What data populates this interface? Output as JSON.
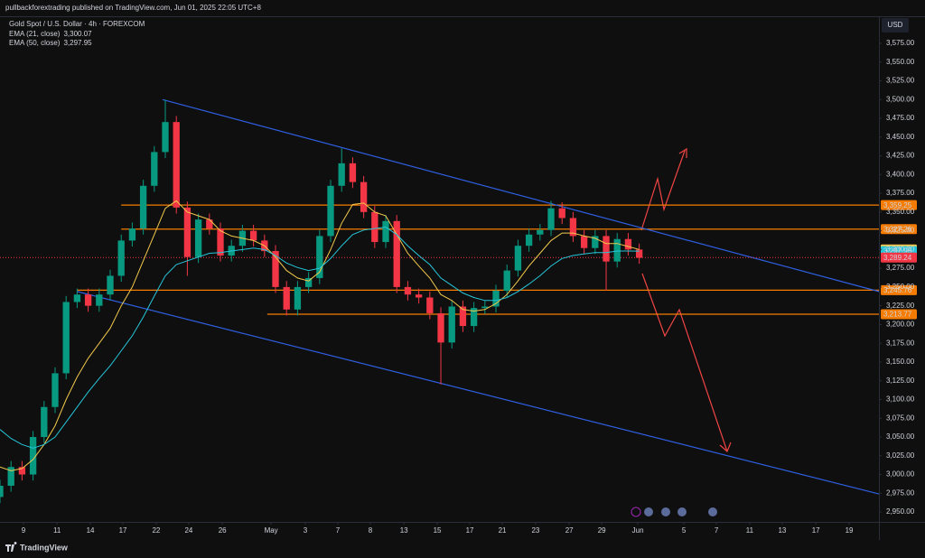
{
  "header": {
    "publisher": "pullbackforextrading published on TradingView.com, Jun 01, 2025 22:05 UTC+8",
    "currency": "USD",
    "brand": "TradingView"
  },
  "chart_data": {
    "type": "candlestick",
    "title": "Gold Spot / U.S. Dollar · 4h · FOREXCOM",
    "up_color": "#089981",
    "down_color": "#f23645",
    "grid": false,
    "x": [
      0,
      4,
      8,
      12,
      16,
      20,
      24,
      28,
      32,
      36,
      40,
      44,
      48,
      52,
      56,
      60,
      64,
      68,
      72,
      76,
      80,
      84,
      88,
      92,
      96,
      100,
      104,
      108,
      112,
      116,
      120,
      124,
      128,
      132,
      136,
      140,
      144,
      148,
      152,
      156,
      160,
      164,
      168,
      172,
      176,
      180,
      184,
      188,
      192,
      196,
      200,
      204,
      208,
      212,
      216,
      220,
      224,
      228,
      232
    ],
    "open": [
      2970,
      2985,
      3010,
      3000,
      3050,
      3090,
      3135,
      3230,
      3240,
      3225,
      3240,
      3265,
      3312,
      3328,
      3385,
      3430,
      3470,
      3356,
      3290,
      3340,
      3328,
      3292,
      3305,
      3325,
      3312,
      3298,
      3250,
      3220,
      3250,
      3262,
      3318,
      3385,
      3415,
      3390,
      3350,
      3310,
      3338,
      3250,
      3240,
      3236,
      3215,
      3176,
      3224,
      3198,
      3222,
      3224,
      3245,
      3272,
      3305,
      3320,
      3326,
      3355,
      3342,
      3318,
      3302,
      3318,
      3284,
      3314,
      3300
    ],
    "high": [
      2993,
      3018,
      3018,
      3058,
      3098,
      3143,
      3238,
      3248,
      3248,
      3248,
      3273,
      3320,
      3336,
      3393,
      3438,
      3500,
      3478,
      3364,
      3348,
      3348,
      3336,
      3313,
      3333,
      3333,
      3320,
      3306,
      3258,
      3258,
      3270,
      3326,
      3393,
      3435,
      3423,
      3398,
      3358,
      3346,
      3346,
      3258,
      3248,
      3244,
      3223,
      3232,
      3232,
      3230,
      3232,
      3253,
      3280,
      3313,
      3328,
      3334,
      3365,
      3363,
      3350,
      3326,
      3326,
      3326,
      3322,
      3322,
      3308
    ],
    "low": [
      2962,
      2977,
      2992,
      2992,
      3042,
      3082,
      3127,
      3222,
      3217,
      3217,
      3232,
      3257,
      3304,
      3320,
      3377,
      3422,
      3348,
      3265,
      3282,
      3320,
      3284,
      3284,
      3297,
      3304,
      3290,
      3242,
      3212,
      3212,
      3242,
      3254,
      3310,
      3377,
      3382,
      3342,
      3302,
      3302,
      3242,
      3232,
      3228,
      3207,
      3120,
      3168,
      3190,
      3190,
      3214,
      3216,
      3237,
      3264,
      3297,
      3312,
      3318,
      3334,
      3310,
      3294,
      3294,
      3245,
      3276,
      3292,
      3281
    ],
    "close": [
      2985,
      3010,
      3000,
      3050,
      3090,
      3135,
      3230,
      3240,
      3225,
      3240,
      3265,
      3312,
      3328,
      3385,
      3430,
      3470,
      3356,
      3290,
      3340,
      3328,
      3292,
      3305,
      3325,
      3312,
      3298,
      3250,
      3220,
      3250,
      3262,
      3318,
      3385,
      3415,
      3390,
      3350,
      3310,
      3338,
      3250,
      3240,
      3236,
      3215,
      3176,
      3224,
      3198,
      3222,
      3224,
      3245,
      3272,
      3305,
      3320,
      3326,
      3355,
      3342,
      3318,
      3302,
      3318,
      3284,
      3314,
      3300,
      3289
    ],
    "series": [
      {
        "name": "EMA (21, close)",
        "color": "#f2c94c",
        "legend_value": {
          "value": 3300.07,
          "label": "3,300.07"
        },
        "values": [
          3010,
          3005,
          3008,
          3020,
          3040,
          3065,
          3100,
          3130,
          3155,
          3175,
          3195,
          3225,
          3250,
          3285,
          3320,
          3355,
          3365,
          3350,
          3345,
          3340,
          3325,
          3318,
          3315,
          3312,
          3305,
          3290,
          3272,
          3262,
          3258,
          3270,
          3300,
          3335,
          3360,
          3362,
          3350,
          3345,
          3320,
          3295,
          3278,
          3262,
          3240,
          3232,
          3220,
          3218,
          3220,
          3228,
          3240,
          3258,
          3278,
          3295,
          3312,
          3322,
          3322,
          3318,
          3315,
          3308,
          3308,
          3304,
          3300.07
        ]
      },
      {
        "name": "EMA (50, close)",
        "color": "#26c6da",
        "legend_value": {
          "value": 3297.95,
          "label": "3,297.95"
        },
        "values": [
          3060,
          3048,
          3040,
          3035,
          3040,
          3050,
          3070,
          3090,
          3110,
          3128,
          3145,
          3165,
          3185,
          3210,
          3238,
          3265,
          3280,
          3285,
          3290,
          3295,
          3296,
          3298,
          3300,
          3302,
          3300,
          3292,
          3282,
          3276,
          3272,
          3275,
          3288,
          3305,
          3320,
          3326,
          3328,
          3330,
          3320,
          3305,
          3292,
          3280,
          3262,
          3252,
          3242,
          3236,
          3232,
          3232,
          3236,
          3244,
          3254,
          3265,
          3278,
          3288,
          3292,
          3294,
          3296,
          3296,
          3298,
          3298,
          3297.95
        ]
      }
    ],
    "last_price": {
      "value": 3289.24,
      "label": "3,289.24",
      "color": "#f23645"
    },
    "levels": [
      {
        "value": 3359.25,
        "label": "3,359.25",
        "x": 44,
        "color": "#f57c00"
      },
      {
        "value": 3327.26,
        "label": "3,327.26",
        "x": 44,
        "color": "#f57c00"
      },
      {
        "value": 3245.76,
        "label": "3,245.76",
        "x": 28,
        "color": "#f57c00"
      },
      {
        "value": 3213.77,
        "label": "3,213.77",
        "x": 97,
        "color": "#f57c00"
      }
    ],
    "trend_lines": [
      {
        "x": [
          59,
          319
        ],
        "y": [
          3500,
          3244
        ],
        "color": "#2f5fe0"
      },
      {
        "x": [
          28,
          319
        ],
        "y": [
          3244,
          2974
        ],
        "color": "#2f5fe0"
      }
    ],
    "xlim": [
      0,
      319
    ],
    "ylim": [
      2936.8,
      3611.1
    ],
    "xticks": [
      {
        "value": 8.5,
        "label": "9"
      },
      {
        "value": 20.7,
        "label": "11"
      },
      {
        "value": 32.8,
        "label": "14"
      },
      {
        "value": 44.6,
        "label": "17"
      },
      {
        "value": 56.7,
        "label": "22"
      },
      {
        "value": 68.5,
        "label": "24"
      },
      {
        "value": 80.7,
        "label": "26"
      },
      {
        "value": 98.4,
        "label": "May"
      },
      {
        "value": 110.8,
        "label": "3"
      },
      {
        "value": 122.6,
        "label": "7"
      },
      {
        "value": 134.4,
        "label": "8"
      },
      {
        "value": 146.6,
        "label": "13"
      },
      {
        "value": 158.7,
        "label": "15"
      },
      {
        "value": 170.5,
        "label": "17"
      },
      {
        "value": 182.3,
        "label": "21"
      },
      {
        "value": 194.4,
        "label": "23"
      },
      {
        "value": 206.6,
        "label": "27"
      },
      {
        "value": 218.4,
        "label": "29"
      },
      {
        "value": 231.5,
        "label": "Jun"
      },
      {
        "value": 248.2,
        "label": "5"
      },
      {
        "value": 260,
        "label": "7"
      },
      {
        "value": 272.1,
        "label": "11"
      },
      {
        "value": 283.9,
        "label": "13"
      },
      {
        "value": 296.1,
        "label": "17"
      },
      {
        "value": 308.2,
        "label": "19"
      }
    ],
    "yticks": [
      {
        "value": 3575,
        "label": "3,575.00"
      },
      {
        "value": 3550,
        "label": "3,550.00"
      },
      {
        "value": 3525,
        "label": "3,525.00"
      },
      {
        "value": 3500,
        "label": "3,500.00"
      },
      {
        "value": 3475,
        "label": "3,475.00"
      },
      {
        "value": 3450,
        "label": "3,450.00"
      },
      {
        "value": 3425,
        "label": "3,425.00"
      },
      {
        "value": 3400,
        "label": "3,400.00"
      },
      {
        "value": 3375,
        "label": "3,375.00"
      },
      {
        "value": 3350,
        "label": "3,350.00"
      },
      {
        "value": 3325,
        "label": "3,325.00"
      },
      {
        "value": 3300,
        "label": "3,300.00"
      },
      {
        "value": 3275,
        "label": "3,275.00"
      },
      {
        "value": 3250,
        "label": "3,250.00"
      },
      {
        "value": 3225,
        "label": "3,225.00"
      },
      {
        "value": 3200,
        "label": "3,200.00"
      },
      {
        "value": 3175,
        "label": "3,175.00"
      },
      {
        "value": 3150,
        "label": "3,150.00"
      },
      {
        "value": 3125,
        "label": "3,125.00"
      },
      {
        "value": 3100,
        "label": "3,100.00"
      },
      {
        "value": 3075,
        "label": "3,075.00"
      },
      {
        "value": 3050,
        "label": "3,050.00"
      },
      {
        "value": 3025,
        "label": "3,025.00"
      },
      {
        "value": 3000,
        "label": "3,000.00"
      },
      {
        "value": 2975,
        "label": "2,975.00"
      },
      {
        "value": 2950,
        "label": "2,950.00"
      }
    ]
  }
}
